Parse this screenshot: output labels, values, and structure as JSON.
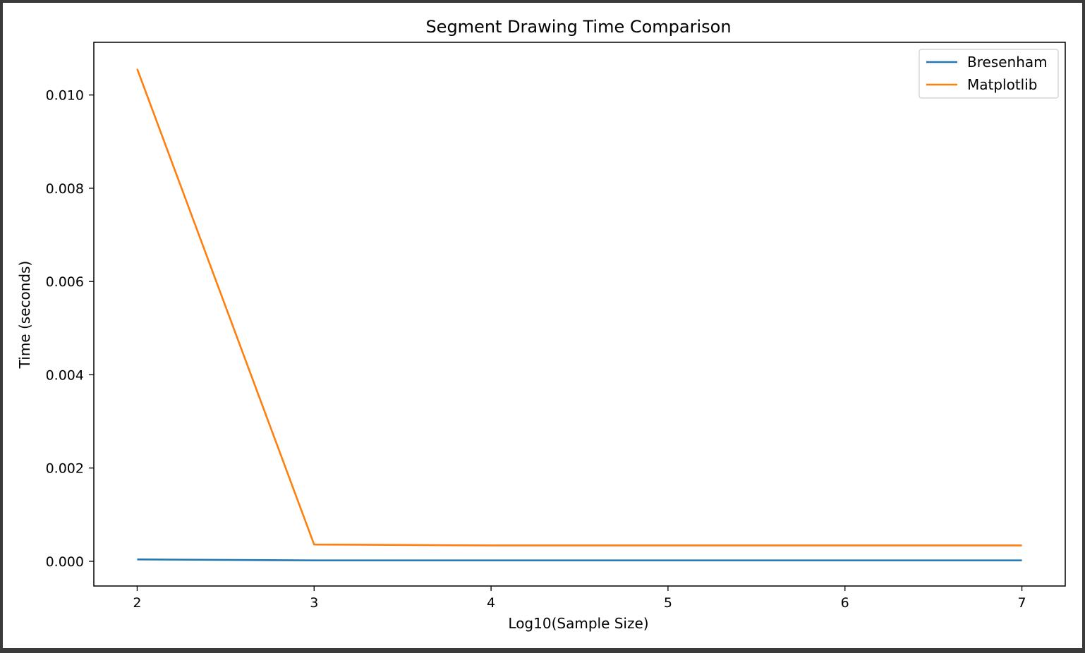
{
  "chart_data": {
    "type": "line",
    "title": "Segment Drawing Time Comparison",
    "xlabel": "Log10(Sample Size)",
    "ylabel": "Time (seconds)",
    "x": [
      2,
      3,
      4,
      5,
      6,
      7
    ],
    "xticks": [
      "2",
      "3",
      "4",
      "5",
      "6",
      "7"
    ],
    "yticks": [
      "0.000",
      "0.002",
      "0.004",
      "0.006",
      "0.008",
      "0.010"
    ],
    "xlim": [
      1.755,
      7.245
    ],
    "ylim": [
      -0.00053,
      0.01113
    ],
    "grid": false,
    "legend_position": "upper right",
    "series": [
      {
        "name": "Bresenham",
        "color": "#1f77b4",
        "values": [
          4e-05,
          2e-05,
          2e-05,
          2e-05,
          2e-05,
          2e-05
        ]
      },
      {
        "name": "Matplotlib",
        "color": "#ff7f0e",
        "values": [
          0.01056,
          0.00036,
          0.00034,
          0.00034,
          0.00034,
          0.00034
        ]
      }
    ]
  }
}
